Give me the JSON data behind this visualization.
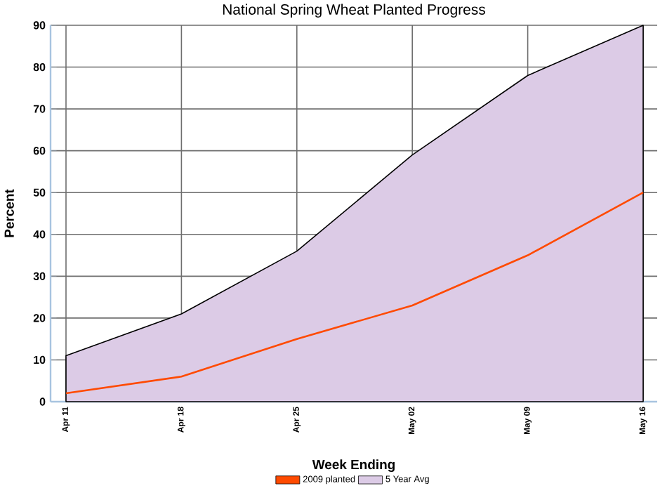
{
  "chart_data": {
    "type": "line",
    "title": "National Spring Wheat Planted Progress",
    "xlabel": "Week Ending",
    "ylabel": "Percent",
    "categories": [
      "Apr 11",
      "Apr 18",
      "Apr 25",
      "May 02",
      "May 09",
      "May 16"
    ],
    "series": [
      {
        "name": "2009 planted",
        "color": "#ff4a00",
        "values": [
          2,
          6,
          15,
          23,
          35,
          50
        ]
      },
      {
        "name": "5 Year Avg",
        "type": "area",
        "color": "#dccbe6",
        "values": [
          11,
          21,
          36,
          59,
          78,
          90
        ]
      }
    ],
    "ylim": [
      0,
      90
    ],
    "yticks": [
      0,
      10,
      20,
      30,
      40,
      50,
      60,
      70,
      80,
      90
    ],
    "grid": true,
    "legend": "bottom"
  }
}
